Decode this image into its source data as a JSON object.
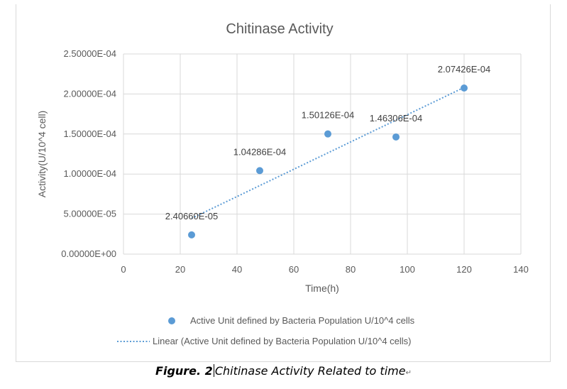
{
  "chart_data": {
    "type": "scatter",
    "title": "Chitinase Activity",
    "xlabel": "Time(h)",
    "ylabel": "Activity(U/10^4 cell)",
    "xlim": [
      0,
      140
    ],
    "ylim": [
      0,
      0.00025
    ],
    "xticks": [
      "0",
      "20",
      "40",
      "60",
      "80",
      "100",
      "120",
      "140"
    ],
    "yticks": [
      "0.00000E+00",
      "5.00000E-05",
      "1.00000E-04",
      "1.50000E-04",
      "2.00000E-04",
      "2.50000E-04"
    ],
    "grid": true,
    "legend_position": "bottom",
    "series": [
      {
        "name": "Active Unit defined by Bacteria Population U/10^4 cells",
        "x": [
          24,
          48,
          72,
          96,
          120
        ],
        "y": [
          2.4066e-05,
          0.000104286,
          0.000150126,
          0.000146306,
          0.000207426
        ],
        "labels": [
          "2.40660E-05",
          "1.04286E-04",
          "1.50126E-04",
          "1.46306E-04",
          "2.07426E-04"
        ],
        "color": "#5b9bd5"
      }
    ],
    "trendline": {
      "name": "Linear (Active Unit defined by Bacteria Population U/10^4 cells)",
      "type": "linear",
      "style": "dotted",
      "color": "#5b9bd5"
    }
  },
  "caption": {
    "figure_label": "Figure. 2",
    "text": "Chitinase Activity Related to time",
    "mark": "↵"
  }
}
